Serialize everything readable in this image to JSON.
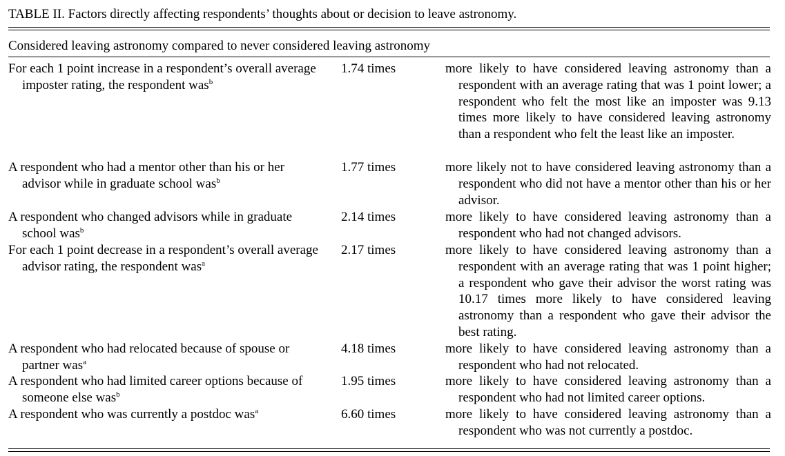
{
  "caption": "TABLE II.   Factors directly affecting respondents’ thoughts about or decision to leave astronomy.",
  "subheading": "Considered leaving astronomy compared to never considered leaving astronomy",
  "rows": [
    {
      "factor": "For each 1 point increase in a respondent’s overall average imposter rating, the respondent was",
      "note": "b",
      "times": "1.74 times",
      "effect": "more likely to have considered leaving astronomy than a respondent with an average rating that was 1 point lower; a respondent who felt the most like an imposter was 9.13 times more likely to have considered leaving astronomy than a respondent who felt the least like an imposter."
    },
    {
      "factor": "A respondent who had a mentor other than his or her advisor while in graduate school was",
      "note": "b",
      "times": "1.77 times",
      "effect": "more likely not to have considered leaving astronomy than a respondent who did not have a mentor other than his or her advisor."
    },
    {
      "factor": "A respondent who changed advisors while in graduate school was",
      "note": "b",
      "times": "2.14 times",
      "effect": "more likely to have considered leaving astronomy than a respondent who had not changed advisors."
    },
    {
      "factor": "For each 1 point decrease in a respondent’s overall average advisor rating, the respondent was",
      "note": "a",
      "times": "2.17 times",
      "effect": "more likely to have considered leaving astronomy than a respondent with an average rating that was 1 point higher; a respondent who gave their advisor the worst rating was 10.17 times more likely to have considered leaving astronomy than a respondent who gave their advisor the best rating."
    },
    {
      "factor": "A respondent who had relocated because of spouse or partner was",
      "note": "a",
      "times": "4.18 times",
      "effect": "more likely to have considered leaving astronomy than a respondent who had not relocated."
    },
    {
      "factor": "A respondent who had limited career options because of someone else was",
      "note": "b",
      "times": "1.95 times",
      "effect": "more likely to have considered leaving astronomy than a respondent who had not limited career options."
    },
    {
      "factor": "A respondent who was currently a postdoc was",
      "note": "a",
      "times": "6.60 times",
      "effect": "more likely to have considered leaving astronomy than a respondent who was not currently a postdoc."
    }
  ]
}
